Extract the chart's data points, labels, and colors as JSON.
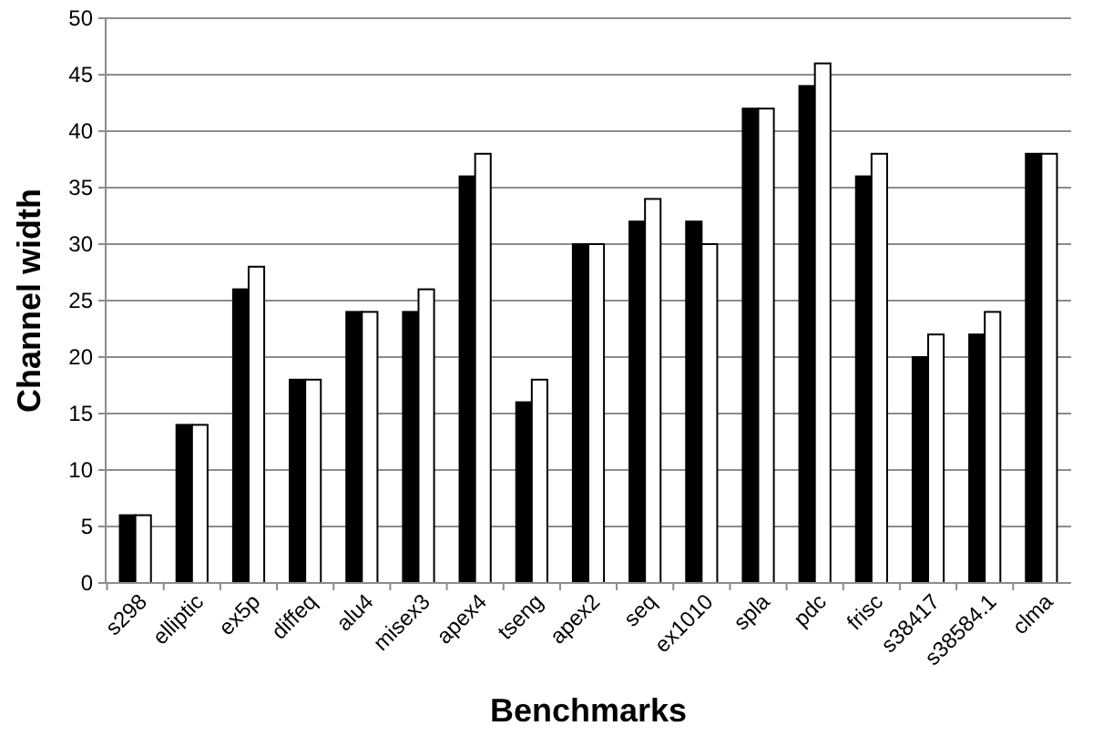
{
  "chart_data": {
    "type": "bar",
    "xlabel": "Benchmarks",
    "ylabel": "Channel width",
    "categories": [
      "s298",
      "elliptic",
      "ex5p",
      "diffeq",
      "alu4",
      "misex3",
      "apex4",
      "tseng",
      "apex2",
      "seq",
      "ex1010",
      "spla",
      "pdc",
      "frisc",
      "s38417",
      "s38584.1",
      "clma"
    ],
    "series": [
      {
        "color": "#000000",
        "values": [
          6,
          14,
          26,
          18,
          24,
          24,
          36,
          16,
          30,
          32,
          32,
          42,
          44,
          36,
          20,
          22,
          38
        ]
      },
      {
        "color": "#ffffff",
        "values": [
          6,
          14,
          28,
          18,
          24,
          26,
          38,
          18,
          30,
          34,
          30,
          42,
          46,
          38,
          22,
          24,
          38
        ]
      }
    ],
    "ylim": [
      0,
      50
    ],
    "yticks": [
      0,
      5,
      10,
      15,
      20,
      25,
      30,
      35,
      40,
      45,
      50
    ],
    "grid": "y"
  }
}
